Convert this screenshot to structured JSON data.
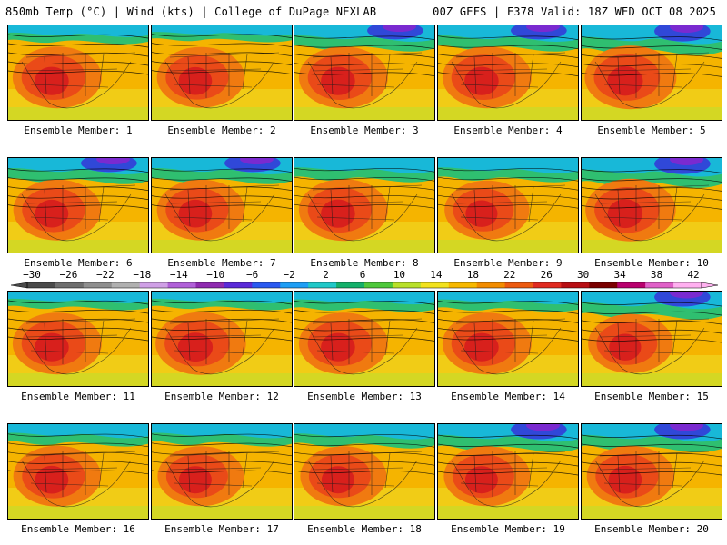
{
  "header": {
    "left_title": "850mb Temp (°C) | Wind (kts) | College of DuPage NEXLAB",
    "right_title": "00Z GEFS | F378 Valid: 18Z WED OCT 08 2025"
  },
  "colorbar": {
    "labels": [
      "−30",
      "−26",
      "−22",
      "−18",
      "−14",
      "−10",
      "−6",
      "−2",
      "2",
      "6",
      "10",
      "14",
      "18",
      "22",
      "26",
      "30",
      "34",
      "38",
      "42"
    ],
    "colors": [
      "#4a4a4a",
      "#6e6e6e",
      "#8e8e8e",
      "#b0b0b0",
      "#cfa0e6",
      "#b060d8",
      "#8e2ab0",
      "#5a2ad8",
      "#2a5af0",
      "#1e9ef5",
      "#20c8c8",
      "#14b06a",
      "#4ec83c",
      "#b8e02a",
      "#f2e21e",
      "#f7b800",
      "#f28c00",
      "#ec5a10",
      "#e02a20",
      "#b80f14",
      "#7a0000",
      "#b8006e",
      "#e060c8",
      "#ffb0f0"
    ]
  },
  "ensemble": {
    "label_prefix": "Ensemble Member:",
    "members": [
      {
        "id": 1,
        "caption": "Ensemble Member: 1",
        "cold": 0.25,
        "hot": 0.6
      },
      {
        "id": 2,
        "caption": "Ensemble Member: 2",
        "cold": 0.2,
        "hot": 0.55
      },
      {
        "id": 3,
        "caption": "Ensemble Member: 3",
        "cold": 0.45,
        "hot": 0.6
      },
      {
        "id": 4,
        "caption": "Ensemble Member: 4",
        "cold": 0.45,
        "hot": 0.6
      },
      {
        "id": 5,
        "caption": "Ensemble Member: 5",
        "cold": 0.55,
        "hot": 0.7
      },
      {
        "id": 6,
        "caption": "Ensemble Member: 6",
        "cold": 0.45,
        "hot": 0.55
      },
      {
        "id": 7,
        "caption": "Ensemble Member: 7",
        "cold": 0.45,
        "hot": 0.55
      },
      {
        "id": 8,
        "caption": "Ensemble Member: 8",
        "cold": 0.4,
        "hot": 0.6
      },
      {
        "id": 9,
        "caption": "Ensemble Member: 9",
        "cold": 0.4,
        "hot": 0.45
      },
      {
        "id": 10,
        "caption": "Ensemble Member: 10",
        "cold": 0.55,
        "hot": 0.65
      },
      {
        "id": 11,
        "caption": "Ensemble Member: 11",
        "cold": 0.25,
        "hot": 0.6
      },
      {
        "id": 12,
        "caption": "Ensemble Member: 12",
        "cold": 0.25,
        "hot": 0.65
      },
      {
        "id": 13,
        "caption": "Ensemble Member: 13",
        "cold": 0.3,
        "hot": 0.6
      },
      {
        "id": 14,
        "caption": "Ensemble Member: 14",
        "cold": 0.3,
        "hot": 0.6
      },
      {
        "id": 15,
        "caption": "Ensemble Member: 15",
        "cold": 0.5,
        "hot": 0.45
      },
      {
        "id": 16,
        "caption": "Ensemble Member: 16",
        "cold": 0.35,
        "hot": 0.55
      },
      {
        "id": 17,
        "caption": "Ensemble Member: 17",
        "cold": 0.35,
        "hot": 0.5
      },
      {
        "id": 18,
        "caption": "Ensemble Member: 18",
        "cold": 0.4,
        "hot": 0.5
      },
      {
        "id": 19,
        "caption": "Ensemble Member: 19",
        "cold": 0.5,
        "hot": 0.5
      },
      {
        "id": 20,
        "caption": "Ensemble Member: 20",
        "cold": 0.5,
        "hot": 0.55
      }
    ]
  }
}
